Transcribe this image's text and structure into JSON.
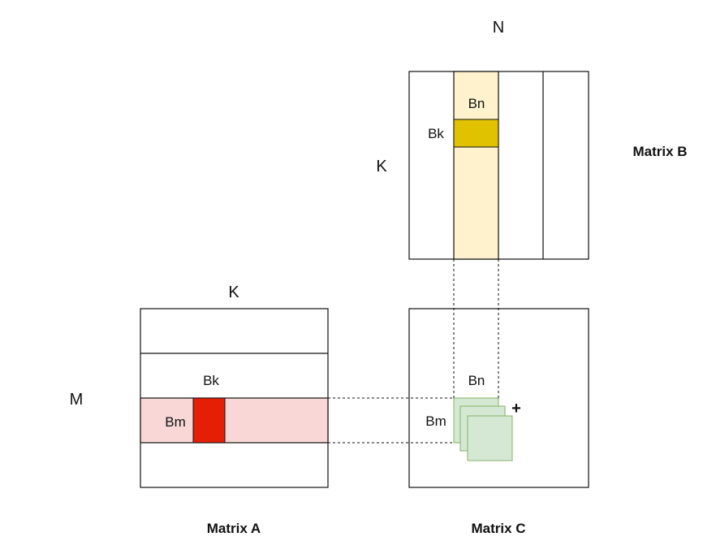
{
  "colors": {
    "stroke": "#111111",
    "a_row_fill": "#f8d7d6",
    "a_block_fill": "#e51f06",
    "b_col_fill": "#fff2cc",
    "b_block_fill": "#e0c200",
    "c_tile_fill": "#d5e8d4",
    "c_tile_stroke": "#82b366"
  },
  "matrix_b": {
    "title": "Matrix B",
    "dim_top": "N",
    "dim_left": "K",
    "col_block_label": "Bn",
    "k_block_label": "Bk"
  },
  "matrix_a": {
    "title": "Matrix A",
    "dim_top": "K",
    "dim_left": "M",
    "k_block_label": "Bk",
    "row_block_label": "Bm"
  },
  "matrix_c": {
    "title": "Matrix C",
    "col_block_label": "Bn",
    "row_block_label": "Bm",
    "accumulate_symbol": "+"
  }
}
